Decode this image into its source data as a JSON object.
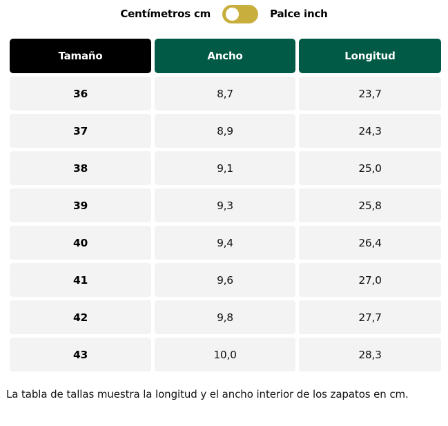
{
  "unit_toggle": {
    "left_label": "Centímetros cm",
    "right_label": "Palce inch",
    "selected": "cm",
    "track_color": "#c7ae3d"
  },
  "table": {
    "header_colors": {
      "size": "#000000",
      "other": "#005a46"
    },
    "columns": [
      "Tamaño",
      "Ancho",
      "Longitud"
    ],
    "rows": [
      {
        "size": "36",
        "width": "8,7",
        "length": "23,7"
      },
      {
        "size": "37",
        "width": "8,9",
        "length": "24,3"
      },
      {
        "size": "38",
        "width": "9,1",
        "length": "25,0"
      },
      {
        "size": "39",
        "width": "9,3",
        "length": "25,8"
      },
      {
        "size": "40",
        "width": "9,4",
        "length": "26,4"
      },
      {
        "size": "41",
        "width": "9,6",
        "length": "27,0"
      },
      {
        "size": "42",
        "width": "9,8",
        "length": "27,7"
      },
      {
        "size": "43",
        "width": "10,0",
        "length": "28,3"
      }
    ]
  },
  "footnote": "La tabla de tallas muestra la longitud y el ancho interior de los zapatos en cm."
}
